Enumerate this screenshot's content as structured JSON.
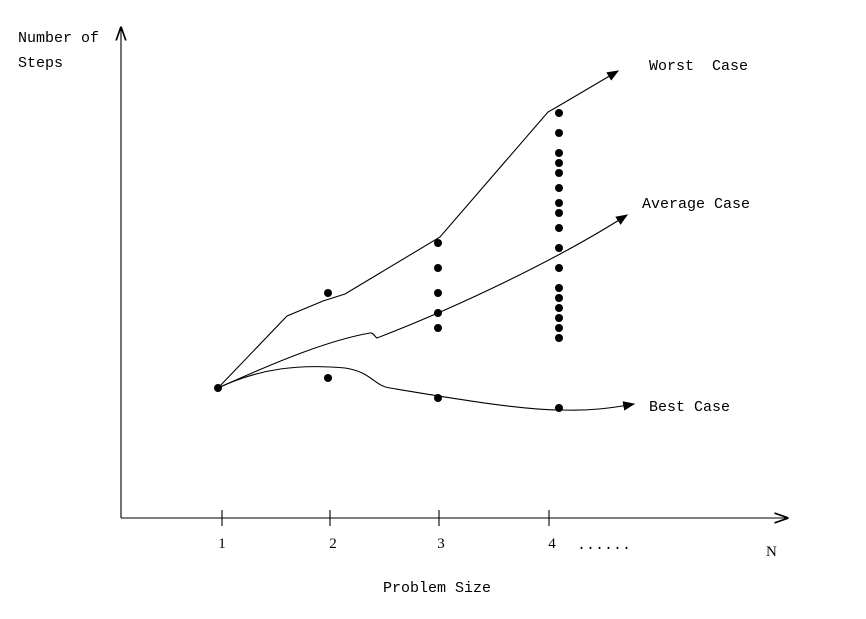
{
  "chart_data": {
    "type": "scatter",
    "ylabel_line1": "Number of",
    "ylabel_line2": "Steps",
    "xlabel": "Problem Size",
    "x_axis_end_label": "N",
    "x_ticks": [
      "1",
      "2",
      "3",
      "4"
    ],
    "x_tick_continuation": "......",
    "curve_labels": {
      "worst": "Worst  Case",
      "average": "Average Case",
      "best": "Best Case"
    },
    "points": [
      {
        "x": 1,
        "y": 1.3
      },
      {
        "x": 2,
        "y": 2.25
      },
      {
        "x": 2,
        "y": 1.4
      },
      {
        "x": 3,
        "y": 2.75
      },
      {
        "x": 3,
        "y": 2.5
      },
      {
        "x": 3,
        "y": 2.25
      },
      {
        "x": 3,
        "y": 2.05
      },
      {
        "x": 3,
        "y": 1.9
      },
      {
        "x": 3,
        "y": 1.2
      },
      {
        "x": 4.1,
        "y": 4.05
      },
      {
        "x": 4.1,
        "y": 3.85
      },
      {
        "x": 4.1,
        "y": 3.65
      },
      {
        "x": 4.1,
        "y": 3.55
      },
      {
        "x": 4.1,
        "y": 3.45
      },
      {
        "x": 4.1,
        "y": 3.3
      },
      {
        "x": 4.1,
        "y": 3.15
      },
      {
        "x": 4.1,
        "y": 3.05
      },
      {
        "x": 4.1,
        "y": 2.9
      },
      {
        "x": 4.1,
        "y": 2.7
      },
      {
        "x": 4.1,
        "y": 2.5
      },
      {
        "x": 4.1,
        "y": 2.3
      },
      {
        "x": 4.1,
        "y": 2.2
      },
      {
        "x": 4.1,
        "y": 2.1
      },
      {
        "x": 4.1,
        "y": 2.0
      },
      {
        "x": 4.1,
        "y": 1.9
      },
      {
        "x": 4.1,
        "y": 1.8
      },
      {
        "x": 4.1,
        "y": 1.1
      }
    ]
  }
}
